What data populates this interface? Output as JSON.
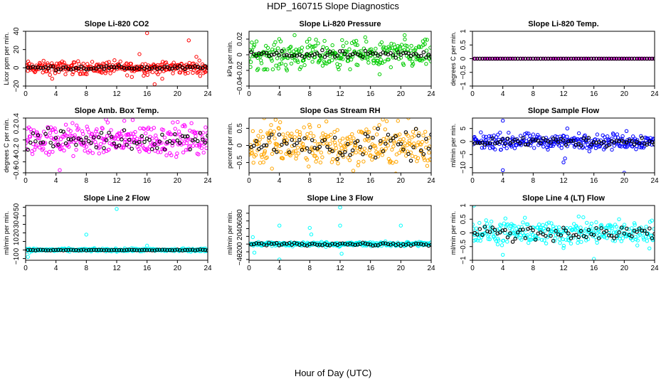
{
  "page": {
    "title": "HDP_160715  Slope Diagnostics",
    "x_caption": "Hour of Day (UTC)"
  },
  "chart_data": [
    {
      "type": "scatter",
      "title": "Slope Li-820 CO2",
      "ylabel": "Licor ppm per min.",
      "xlabel": "",
      "xlim": [
        0,
        24
      ],
      "ylim": [
        -20,
        40
      ],
      "xticks": [
        0,
        4,
        8,
        12,
        16,
        20,
        24
      ],
      "yticks": [
        -20,
        0,
        20,
        40
      ],
      "color": "#ff0000",
      "spread": 6,
      "mean_spread": 2,
      "outliers": [
        [
          16,
          38
        ],
        [
          21.5,
          30
        ],
        [
          22.5,
          12
        ],
        [
          15,
          15
        ],
        [
          3.5,
          -12
        ],
        [
          17,
          -18
        ],
        [
          14,
          -10
        ],
        [
          18,
          -12
        ]
      ]
    },
    {
      "type": "scatter",
      "title": "Slope Li-820 Pressure",
      "ylabel": "kPa per min.",
      "xlabel": "",
      "xlim": [
        0,
        24
      ],
      "ylim": [
        -0.04,
        0.03
      ],
      "xticks": [
        0,
        4,
        8,
        12,
        16,
        20,
        24
      ],
      "yticks": [
        -0.04,
        -0.02,
        0,
        0.02
      ],
      "color": "#00cc00",
      "spread": 0.015,
      "mean_spread": 0.004,
      "outliers": [
        [
          4,
          0.035
        ],
        [
          6,
          0.025
        ],
        [
          20.5,
          0.025
        ],
        [
          24,
          -0.045
        ],
        [
          1.2,
          -0.018
        ],
        [
          5,
          -0.02
        ],
        [
          17.2,
          -0.025
        ]
      ]
    },
    {
      "type": "scatter",
      "title": "Slope Li-820 Temp.",
      "ylabel": "degrees C per min.",
      "xlabel": "",
      "xlim": [
        0,
        24
      ],
      "ylim": [
        -1,
        1
      ],
      "xticks": [
        0,
        4,
        8,
        12,
        16,
        20,
        24
      ],
      "yticks": [
        -1,
        -0.5,
        0,
        0.5,
        1
      ],
      "color": "#ff00ff",
      "spread": 0,
      "mean_spread": 0,
      "outliers": []
    },
    {
      "type": "scatter",
      "title": "Slope Amb. Box Temp.",
      "ylabel": "degrees C per min.",
      "xlabel": "",
      "xlim": [
        0,
        24
      ],
      "ylim": [
        -0.6,
        0.4
      ],
      "xticks": [
        0,
        4,
        8,
        12,
        16,
        20,
        24
      ],
      "yticks": [
        -0.6,
        -0.4,
        -0.2,
        0,
        0.2,
        0.4
      ],
      "color": "#ff00ff",
      "spread": 0.25,
      "mean_spread": 0.15,
      "outliers": [
        [
          4.5,
          -0.55
        ],
        [
          13,
          0.35
        ],
        [
          5,
          0.45
        ]
      ]
    },
    {
      "type": "scatter",
      "title": "Slope Gas Stream RH",
      "ylabel": "percent per min.",
      "xlabel": "",
      "xlim": [
        0,
        24
      ],
      "ylim": [
        -0.8,
        0.8
      ],
      "xticks": [
        0,
        4,
        8,
        12,
        16,
        20,
        24
      ],
      "yticks": [
        -0.5,
        0,
        0.5
      ],
      "color": "#ffa500",
      "spread": 0.55,
      "mean_spread": 0.35,
      "outliers": [
        [
          2,
          0.8
        ],
        [
          21,
          0.8
        ],
        [
          3.5,
          0.75
        ]
      ]
    },
    {
      "type": "scatter",
      "title": "Slope Sample Flow",
      "ylabel": "ml/min per min.",
      "xlabel": "",
      "xlim": [
        0,
        24
      ],
      "ylim": [
        -12,
        9
      ],
      "xticks": [
        0,
        4,
        8,
        12,
        16,
        20,
        24
      ],
      "yticks": [
        -10,
        -5,
        0,
        5
      ],
      "color": "#0000ff",
      "spread": 2.5,
      "mean_spread": 1.5,
      "outliers": [
        [
          4,
          8
        ],
        [
          4,
          -11
        ],
        [
          12,
          -8
        ],
        [
          20,
          -12
        ],
        [
          12.5,
          5
        ],
        [
          20.3,
          4
        ],
        [
          12.2,
          -6.5
        ]
      ]
    },
    {
      "type": "scatter",
      "title": "Slope Line 2 Flow",
      "ylabel": "ml/min per min.",
      "xlabel": "",
      "xlim": [
        0,
        24
      ],
      "ylim": [
        -12,
        52
      ],
      "xticks": [
        0,
        4,
        8,
        12,
        16,
        20,
        24
      ],
      "yticks": [
        -10,
        0,
        10,
        20,
        30,
        40,
        50
      ],
      "color": "#00ffff",
      "spread": 1.5,
      "mean_spread": 0.4,
      "outliers": [
        [
          12,
          48
        ],
        [
          8,
          18
        ],
        [
          0.3,
          -8
        ],
        [
          16,
          5
        ],
        [
          0.5,
          -3
        ]
      ]
    },
    {
      "type": "scatter",
      "title": "Slope Line 3 Flow",
      "ylabel": "ml/min per min.",
      "xlabel": "",
      "xlim": [
        0,
        24
      ],
      "ylim": [
        -42,
        100
      ],
      "xticks": [
        0,
        4,
        8,
        12,
        16,
        20,
        24
      ],
      "yticks": [
        -40,
        -20,
        0,
        20,
        40,
        60,
        80
      ],
      "color": "#00ffff",
      "spread": 5,
      "mean_spread": 4,
      "outliers": [
        [
          12,
          95
        ],
        [
          4,
          48
        ],
        [
          8,
          42
        ],
        [
          12,
          48
        ],
        [
          20,
          48
        ],
        [
          4,
          -40
        ],
        [
          0.5,
          18
        ],
        [
          0.7,
          -22
        ],
        [
          8.2,
          25
        ],
        [
          12.2,
          -25
        ]
      ]
    },
    {
      "type": "scatter",
      "title": "Slope Line 4 (LT) Flow",
      "ylabel": "ml/min per min.",
      "xlabel": "",
      "xlim": [
        0,
        24
      ],
      "ylim": [
        -1,
        1
      ],
      "xticks": [
        0,
        4,
        8,
        12,
        16,
        20,
        24
      ],
      "yticks": [
        -1,
        -0.5,
        0,
        0.5,
        1
      ],
      "color": "#00ffff",
      "spread": 0.38,
      "mean_spread": 0.25,
      "outliers": [
        [
          0.2,
          1
        ],
        [
          16,
          -0.95
        ],
        [
          12,
          -0.55
        ],
        [
          4,
          -0.8
        ],
        [
          14,
          0.6
        ]
      ]
    }
  ]
}
